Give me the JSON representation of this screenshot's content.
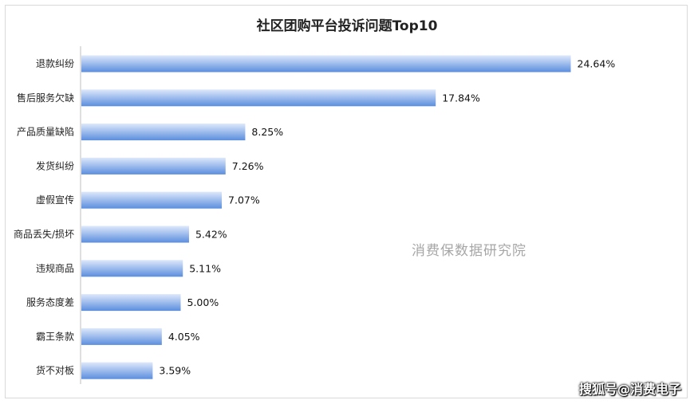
{
  "page": {
    "watermark": "消费保数据研究院",
    "credit": "搜狐号@消费电子"
  },
  "chart_data": {
    "type": "bar",
    "orientation": "horizontal",
    "title": "社区团购平台投诉问题Top10",
    "categories": [
      "退款纠纷",
      "售后服务欠缺",
      "产品质量缺陷",
      "发货纠纷",
      "虚假宣传",
      "商品丢失/损坏",
      "违规商品",
      "服务态度差",
      "霸王条款",
      "货不对板"
    ],
    "values": [
      24.64,
      17.84,
      8.25,
      7.26,
      7.07,
      5.42,
      5.11,
      5.0,
      4.05,
      3.59
    ],
    "value_labels": [
      "24.64%",
      "17.84%",
      "8.25%",
      "7.26%",
      "7.07%",
      "5.42%",
      "5.11%",
      "5.00%",
      "4.05%",
      "3.59%"
    ],
    "xlim": [
      0,
      30
    ],
    "grid": false,
    "legend": "none",
    "colors": {
      "bar_light": "#dde8fb",
      "bar_dark": "#5b8ede",
      "axis": "#bfbfbf"
    }
  }
}
